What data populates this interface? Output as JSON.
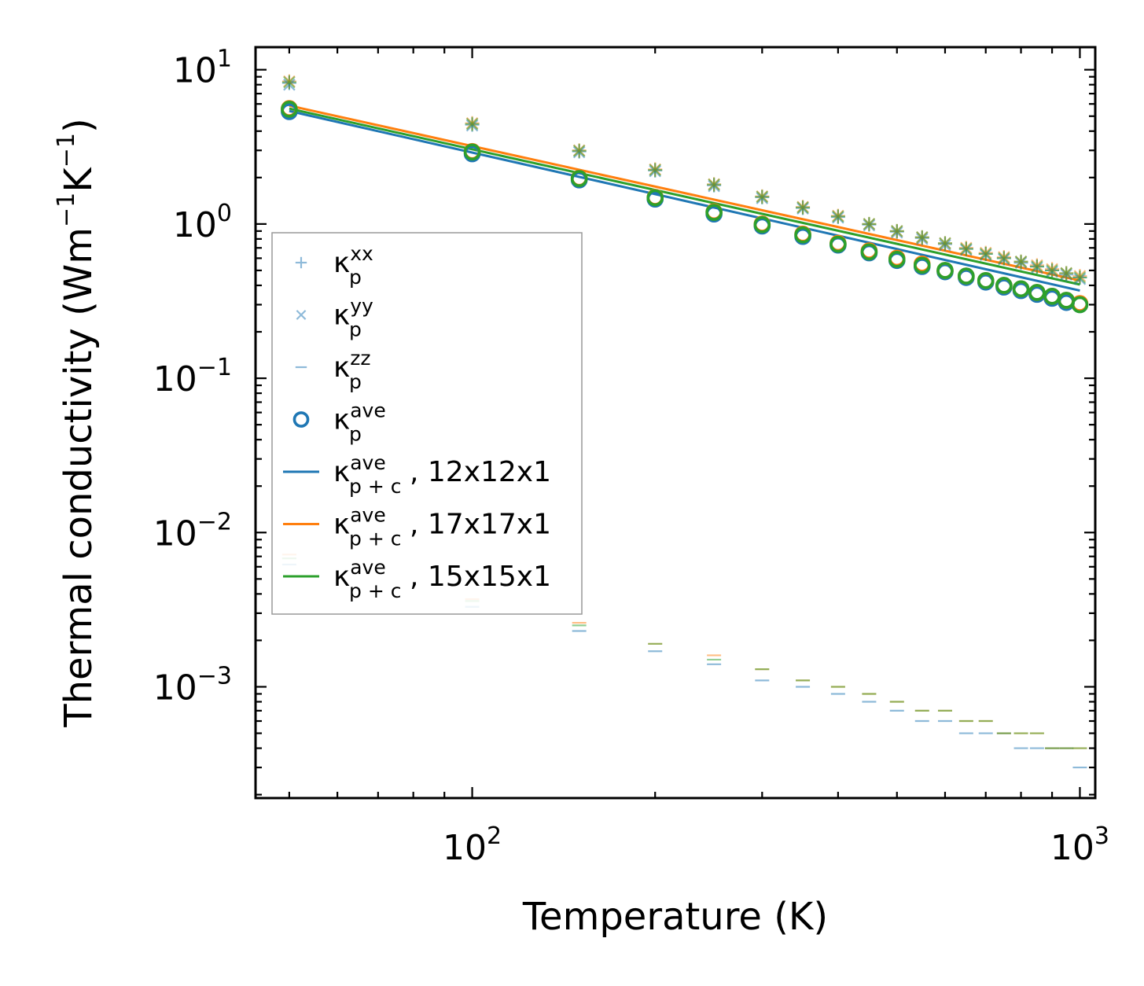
{
  "chart_data": {
    "type": "scatter",
    "xscale": "log",
    "yscale": "log",
    "xlim": [
      44,
      1060
    ],
    "ylim": [
      0.00019,
      14
    ],
    "xlabel": "Temperature (K)",
    "ylabel_parts": {
      "base": "Thermal conductivity (Wm",
      "exp1": "−1",
      "mid": "K",
      "exp2": "−1",
      "end": ")"
    },
    "x_ticks": [
      {
        "mantissa": "10",
        "exp": "2",
        "value": 100
      },
      {
        "mantissa": "10",
        "exp": "3",
        "value": 1000
      }
    ],
    "y_ticks": [
      {
        "mantissa": "10",
        "exp": "1",
        "value": 10
      },
      {
        "mantissa": "10",
        "exp": "0",
        "value": 1
      },
      {
        "mantissa": "10",
        "exp": "−1",
        "value": 0.1
      },
      {
        "mantissa": "10",
        "exp": "−2",
        "value": 0.01
      },
      {
        "mantissa": "10",
        "exp": "−3",
        "value": 0.001
      }
    ],
    "colors": {
      "blue": "#1f77b4",
      "orange": "#ff7f0e",
      "green": "#2ca02c"
    },
    "x": [
      50,
      100,
      150,
      200,
      250,
      300,
      350,
      400,
      450,
      500,
      550,
      600,
      650,
      700,
      750,
      800,
      850,
      900,
      950,
      1000
    ],
    "series": [
      {
        "name": "kxx",
        "marker": "plus",
        "alpha": 0.5,
        "sets": [
          {
            "color": "blue",
            "values": [
              8.2,
              4.4,
              2.95,
              2.22,
              1.78,
              1.49,
              1.27,
              1.11,
              0.99,
              0.89,
              0.81,
              0.74,
              0.69,
              0.64,
              0.6,
              0.56,
              0.53,
              0.5,
              0.47,
              0.45
            ]
          },
          {
            "color": "orange",
            "values": [
              8.4,
              4.5,
              3.0,
              2.26,
              1.81,
              1.51,
              1.29,
              1.13,
              1.0,
              0.9,
              0.82,
              0.75,
              0.7,
              0.65,
              0.61,
              0.57,
              0.54,
              0.51,
              0.48,
              0.46
            ]
          },
          {
            "color": "green",
            "values": [
              8.3,
              4.45,
              2.98,
              2.24,
              1.8,
              1.5,
              1.28,
              1.12,
              1.0,
              0.9,
              0.82,
              0.75,
              0.69,
              0.64,
              0.6,
              0.57,
              0.53,
              0.5,
              0.48,
              0.45
            ]
          }
        ]
      },
      {
        "name": "kyy",
        "marker": "x",
        "alpha": 0.5,
        "sets": [
          {
            "color": "blue",
            "values": [
              8.0,
              4.35,
              2.92,
              2.2,
              1.76,
              1.47,
              1.26,
              1.1,
              0.98,
              0.88,
              0.8,
              0.73,
              0.68,
              0.63,
              0.59,
              0.56,
              0.52,
              0.49,
              0.47,
              0.44
            ]
          },
          {
            "color": "orange",
            "values": [
              8.4,
              4.5,
              3.0,
              2.26,
              1.81,
              1.51,
              1.29,
              1.13,
              1.0,
              0.9,
              0.82,
              0.75,
              0.7,
              0.65,
              0.61,
              0.57,
              0.54,
              0.51,
              0.48,
              0.46
            ]
          },
          {
            "color": "green",
            "values": [
              8.3,
              4.45,
              2.98,
              2.24,
              1.8,
              1.5,
              1.28,
              1.12,
              1.0,
              0.9,
              0.82,
              0.75,
              0.69,
              0.64,
              0.6,
              0.57,
              0.53,
              0.5,
              0.48,
              0.45
            ]
          }
        ]
      },
      {
        "name": "kzz",
        "marker": "hline",
        "alpha": 0.5,
        "sets": [
          {
            "color": "blue",
            "values": [
              0.0062,
              0.0033,
              0.0023,
              0.0017,
              0.0014,
              0.0011,
              0.001,
              0.0009,
              0.0008,
              0.0007,
              0.0006,
              0.0006,
              0.0005,
              0.0005,
              0.0005,
              0.0004,
              0.0004,
              0.0004,
              0.0004,
              0.0003
            ]
          },
          {
            "color": "orange",
            "values": [
              0.0072,
              0.0037,
              0.0026,
              0.0019,
              0.0016,
              0.0013,
              0.0011,
              0.001,
              0.0009,
              0.0008,
              0.0007,
              0.0007,
              0.0006,
              0.0006,
              0.0005,
              0.0005,
              0.0005,
              0.0004,
              0.0004,
              0.0004
            ]
          },
          {
            "color": "green",
            "values": [
              0.0068,
              0.0036,
              0.0025,
              0.0019,
              0.0015,
              0.0013,
              0.0011,
              0.001,
              0.0009,
              0.0008,
              0.0007,
              0.0007,
              0.0006,
              0.0006,
              0.0005,
              0.0005,
              0.0005,
              0.0004,
              0.0004,
              0.0004
            ]
          }
        ]
      },
      {
        "name": "kave",
        "marker": "circle",
        "alpha": 1.0,
        "sets": [
          {
            "color": "blue",
            "values": [
              5.35,
              2.85,
              1.93,
              1.45,
              1.16,
              0.97,
              0.83,
              0.73,
              0.65,
              0.58,
              0.53,
              0.49,
              0.45,
              0.42,
              0.39,
              0.37,
              0.35,
              0.33,
              0.31,
              0.3
            ]
          },
          {
            "color": "orange",
            "values": [
              5.6,
              2.95,
              1.98,
              1.49,
              1.2,
              1.0,
              0.86,
              0.75,
              0.67,
              0.6,
              0.55,
              0.5,
              0.46,
              0.43,
              0.4,
              0.38,
              0.36,
              0.34,
              0.32,
              0.305
            ]
          },
          {
            "color": "green",
            "values": [
              5.55,
              2.93,
              1.97,
              1.48,
              1.19,
              0.99,
              0.85,
              0.74,
              0.66,
              0.59,
              0.54,
              0.5,
              0.46,
              0.43,
              0.4,
              0.38,
              0.36,
              0.34,
              0.32,
              0.3
            ]
          }
        ]
      }
    ],
    "lines": [
      {
        "label": "12x12x1",
        "color": "blue",
        "x": [
          50,
          1000
        ],
        "y": [
          5.4,
          0.37
        ]
      },
      {
        "label": "17x17x1",
        "color": "orange",
        "x": [
          50,
          1000
        ],
        "y": [
          5.85,
          0.43
        ]
      },
      {
        "label": "15x15x1",
        "color": "green",
        "x": [
          50,
          1000
        ],
        "y": [
          5.6,
          0.405
        ]
      }
    ],
    "legend": {
      "location": "center-left",
      "entries": [
        {
          "symbol": "κ",
          "sub": "p",
          "sup": "xx",
          "suffix": "",
          "marker": "plus",
          "color": "blue"
        },
        {
          "symbol": "κ",
          "sub": "p",
          "sup": "yy",
          "suffix": "",
          "marker": "x",
          "color": "blue"
        },
        {
          "symbol": "κ",
          "sub": "p",
          "sup": "zz",
          "suffix": "",
          "marker": "hline",
          "color": "blue"
        },
        {
          "symbol": "κ",
          "sub": "p",
          "sup": "ave",
          "suffix": "",
          "marker": "circle",
          "color": "blue"
        },
        {
          "symbol": "κ",
          "sub": "p + c",
          "sup": "ave",
          "suffix": ", 12x12x1",
          "marker": "line",
          "color": "blue"
        },
        {
          "symbol": "κ",
          "sub": "p + c",
          "sup": "ave",
          "suffix": ", 17x17x1",
          "marker": "line",
          "color": "orange"
        },
        {
          "symbol": "κ",
          "sub": "p + c",
          "sup": "ave",
          "suffix": ", 15x15x1",
          "marker": "line",
          "color": "green"
        }
      ]
    }
  }
}
